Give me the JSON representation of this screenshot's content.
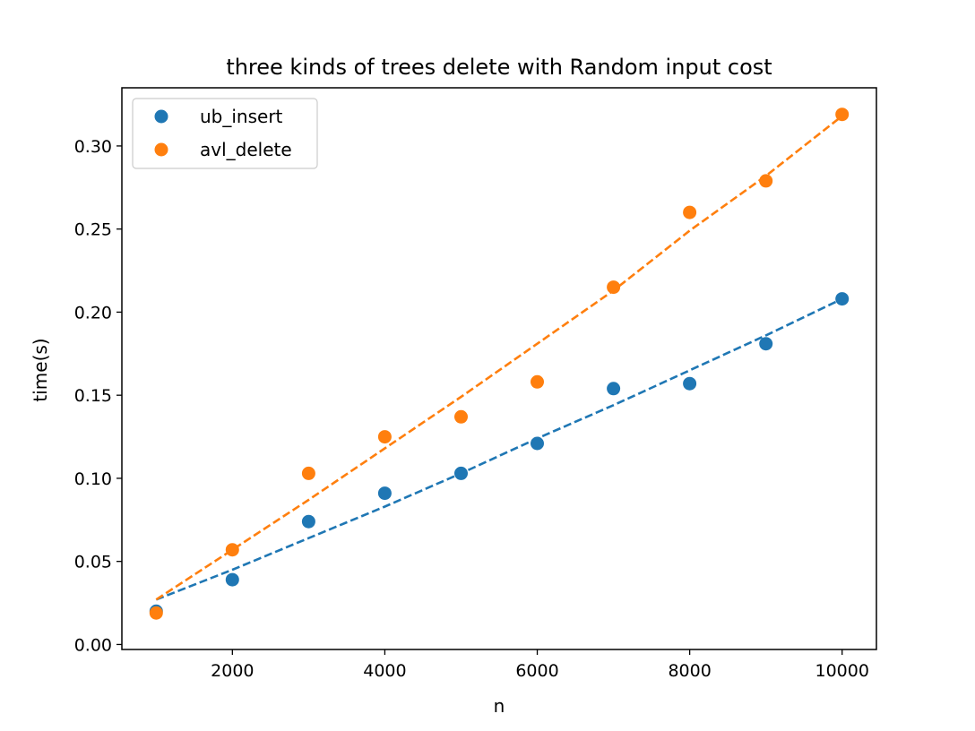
{
  "chart_data": {
    "type": "scatter",
    "title": "three kinds of trees delete with Random input cost",
    "xlabel": "n",
    "ylabel": "time(s)",
    "xlim": [
      550,
      10450
    ],
    "ylim": [
      -0.003,
      0.335
    ],
    "xticks": [
      2000,
      4000,
      6000,
      8000,
      10000
    ],
    "xtick_labels": [
      "2000",
      "4000",
      "6000",
      "8000",
      "10000"
    ],
    "yticks": [
      0.0,
      0.05,
      0.1,
      0.15,
      0.2,
      0.25,
      0.3
    ],
    "ytick_labels": [
      "0.00",
      "0.05",
      "0.10",
      "0.15",
      "0.20",
      "0.25",
      "0.30"
    ],
    "grid": false,
    "legend_position": "upper-left",
    "x": [
      1000,
      2000,
      3000,
      4000,
      5000,
      6000,
      7000,
      8000,
      9000,
      10000
    ],
    "series": [
      {
        "name": "ub_insert",
        "color": "#1f77b4",
        "values": [
          0.02,
          0.039,
          0.074,
          0.091,
          0.103,
          0.121,
          0.154,
          0.157,
          0.181,
          0.208
        ],
        "fit_line": {
          "style": "dashed",
          "values": [
            0.027,
            0.045,
            0.064,
            0.083,
            0.103,
            0.124,
            0.144,
            0.165,
            0.186,
            0.208
          ]
        }
      },
      {
        "name": "avl_delete",
        "color": "#ff7f0e",
        "values": [
          0.019,
          0.057,
          0.103,
          0.125,
          0.137,
          0.158,
          0.215,
          0.26,
          0.279,
          0.319
        ],
        "fit_line": {
          "style": "dashed",
          "values": [
            0.027,
            0.057,
            0.087,
            0.118,
            0.149,
            0.181,
            0.213,
            0.249,
            0.282,
            0.318
          ]
        }
      }
    ]
  }
}
